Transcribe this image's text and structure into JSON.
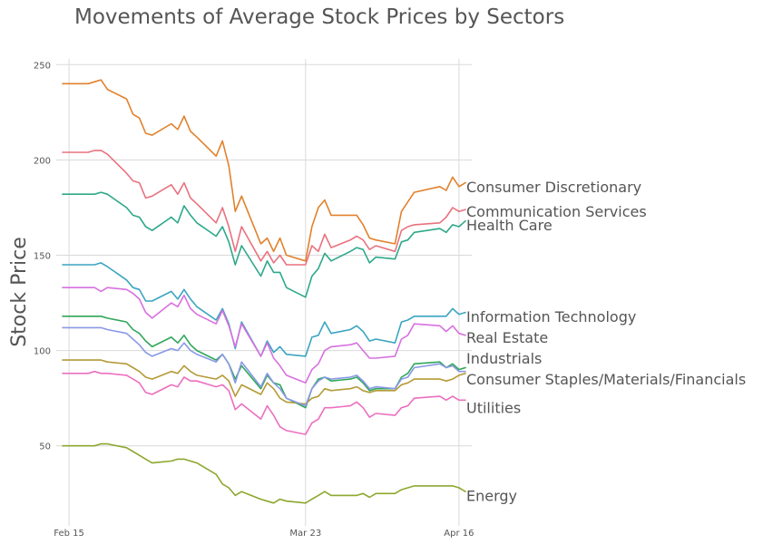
{
  "chart_data": {
    "type": "line",
    "title": "Movements of Average Stock Prices by Sectors",
    "xlabel": "",
    "ylabel": "Stock Price",
    "x_dates": [
      "2020-02-14",
      "2020-02-18",
      "2020-02-19",
      "2020-02-20",
      "2020-02-21",
      "2020-02-24",
      "2020-02-25",
      "2020-02-26",
      "2020-02-27",
      "2020-02-28",
      "2020-03-02",
      "2020-03-03",
      "2020-03-04",
      "2020-03-05",
      "2020-03-06",
      "2020-03-09",
      "2020-03-10",
      "2020-03-11",
      "2020-03-12",
      "2020-03-13",
      "2020-03-16",
      "2020-03-17",
      "2020-03-18",
      "2020-03-19",
      "2020-03-20",
      "2020-03-23",
      "2020-03-24",
      "2020-03-25",
      "2020-03-26",
      "2020-03-27",
      "2020-03-30",
      "2020-03-31",
      "2020-04-01",
      "2020-04-02",
      "2020-04-03",
      "2020-04-06",
      "2020-04-07",
      "2020-04-08",
      "2020-04-09",
      "2020-04-13",
      "2020-04-14",
      "2020-04-15",
      "2020-04-16",
      "2020-04-17"
    ],
    "x_ticks": [
      {
        "date": "2020-02-15",
        "label": "Feb 15"
      },
      {
        "date": "2020-03-23",
        "label": "Mar 23"
      },
      {
        "date": "2020-04-16",
        "label": "Apr 16"
      }
    ],
    "ylim": [
      8,
      253
    ],
    "y_ticks": [
      50,
      100,
      150,
      200,
      250
    ],
    "grid": true,
    "legend": "labels at right end of each line",
    "series": [
      {
        "name": "Consumer Discretionary",
        "color": "#e1812c",
        "values": [
          240,
          240,
          241,
          242,
          237,
          232,
          224,
          222,
          214,
          213,
          219,
          216,
          223,
          215,
          212,
          202,
          210,
          197,
          173,
          181,
          156,
          159,
          152,
          159,
          150,
          147,
          165,
          175,
          179,
          171,
          171,
          171,
          166,
          159,
          158,
          156,
          173,
          178,
          183,
          186,
          184,
          191,
          186,
          188
        ]
      },
      {
        "name": "Communication Services",
        "color": "#e8727e",
        "values": [
          204,
          204,
          205,
          205,
          203,
          193,
          189,
          188,
          180,
          181,
          187,
          182,
          188,
          180,
          177,
          167,
          175,
          165,
          152,
          165,
          147,
          152,
          146,
          150,
          145,
          145,
          155,
          152,
          161,
          154,
          158,
          160,
          158,
          153,
          155,
          152,
          163,
          165,
          166,
          167,
          170,
          175,
          173,
          174
        ]
      },
      {
        "name": "Health Care",
        "color": "#2ea88a",
        "values": [
          182,
          182,
          182,
          183,
          182,
          175,
          171,
          170,
          165,
          163,
          170,
          167,
          176,
          171,
          167,
          160,
          165,
          157,
          145,
          155,
          139,
          147,
          141,
          141,
          133,
          128,
          139,
          143,
          151,
          147,
          152,
          154,
          153,
          146,
          149,
          148,
          157,
          158,
          162,
          164,
          162,
          166,
          165,
          168
        ]
      },
      {
        "name": "Information Technology",
        "color": "#3aa5c0",
        "values": [
          145,
          145,
          145,
          146,
          144,
          137,
          133,
          132,
          126,
          126,
          131,
          127,
          132,
          127,
          123,
          116,
          122,
          114,
          101,
          115,
          97,
          105,
          99,
          102,
          98,
          97,
          107,
          108,
          115,
          109,
          111,
          113,
          110,
          105,
          106,
          104,
          115,
          116,
          118,
          118,
          118,
          122,
          119,
          120
        ]
      },
      {
        "name": "Real Estate",
        "color": "#d870e0",
        "values": [
          133,
          133,
          133,
          131,
          133,
          132,
          130,
          127,
          120,
          117,
          125,
          123,
          129,
          122,
          119,
          114,
          121,
          113,
          102,
          114,
          97,
          104,
          96,
          92,
          87,
          83,
          90,
          93,
          100,
          102,
          103,
          104,
          100,
          96,
          96,
          97,
          106,
          108,
          114,
          113,
          110,
          113,
          109,
          108
        ]
      },
      {
        "name": "Industrials",
        "color": "#2fa75a",
        "values": [
          118,
          118,
          118,
          118,
          117,
          115,
          111,
          109,
          105,
          102,
          107,
          104,
          108,
          103,
          100,
          95,
          98,
          93,
          85,
          92,
          80,
          87,
          83,
          82,
          75,
          70,
          80,
          85,
          86,
          84,
          85,
          86,
          83,
          79,
          80,
          80,
          86,
          88,
          93,
          94,
          91,
          93,
          90,
          91
        ]
      },
      {
        "name": "Consumer Staples/Materials/Financials",
        "color": "#b49a36",
        "values": [
          95,
          95,
          95,
          95,
          94,
          93,
          91,
          89,
          86,
          85,
          89,
          88,
          92,
          89,
          87,
          85,
          87,
          84,
          76,
          82,
          77,
          83,
          80,
          75,
          73,
          72,
          75,
          76,
          80,
          79,
          80,
          81,
          79,
          78,
          79,
          79,
          82,
          83,
          85,
          85,
          84,
          85,
          87,
          88
        ]
      },
      {
        "name": "Utilities",
        "color": "#ec6fc0",
        "values": [
          88,
          88,
          89,
          88,
          88,
          87,
          85,
          83,
          78,
          77,
          82,
          81,
          86,
          84,
          84,
          81,
          82,
          79,
          69,
          72,
          64,
          71,
          66,
          60,
          58,
          56,
          62,
          64,
          70,
          70,
          71,
          73,
          70,
          65,
          67,
          66,
          70,
          71,
          75,
          76,
          74,
          76,
          74,
          74
        ]
      },
      {
        "name": "Energy",
        "color": "#8ca72e",
        "values": [
          50,
          50,
          50,
          51,
          51,
          49,
          47,
          45,
          43,
          41,
          42,
          43,
          43,
          42,
          41,
          35,
          30,
          28,
          24,
          26,
          22,
          21,
          20,
          22,
          21,
          20,
          22,
          24,
          26,
          24,
          24,
          24,
          25,
          23,
          25,
          25,
          27,
          28,
          29,
          29,
          29,
          29,
          28,
          26
        ]
      },
      {
        "name": "",
        "color": "#8a98e6",
        "values": [
          112,
          112,
          112,
          112,
          111,
          109,
          106,
          103,
          99,
          97,
          101,
          100,
          104,
          100,
          98,
          94,
          98,
          93,
          83,
          94,
          81,
          88,
          83,
          80,
          75,
          71,
          80,
          84,
          86,
          85,
          86,
          87,
          84,
          80,
          81,
          80,
          85,
          86,
          91,
          93,
          91,
          92,
          89,
          89
        ]
      }
    ],
    "end_labels": [
      {
        "text": "Consumer Discretionary",
        "y": 186
      },
      {
        "text": "Communication Services",
        "y": 173
      },
      {
        "text": "Health Care",
        "y": 166
      },
      {
        "text": "Information Technology",
        "y": 118
      },
      {
        "text": "Real Estate",
        "y": 107
      },
      {
        "text": "Industrials",
        "y": 96
      },
      {
        "text": "Consumer Staples/Materials/Financials",
        "y": 85
      },
      {
        "text": "Utilities",
        "y": 70
      },
      {
        "text": "Energy",
        "y": 24
      }
    ]
  }
}
